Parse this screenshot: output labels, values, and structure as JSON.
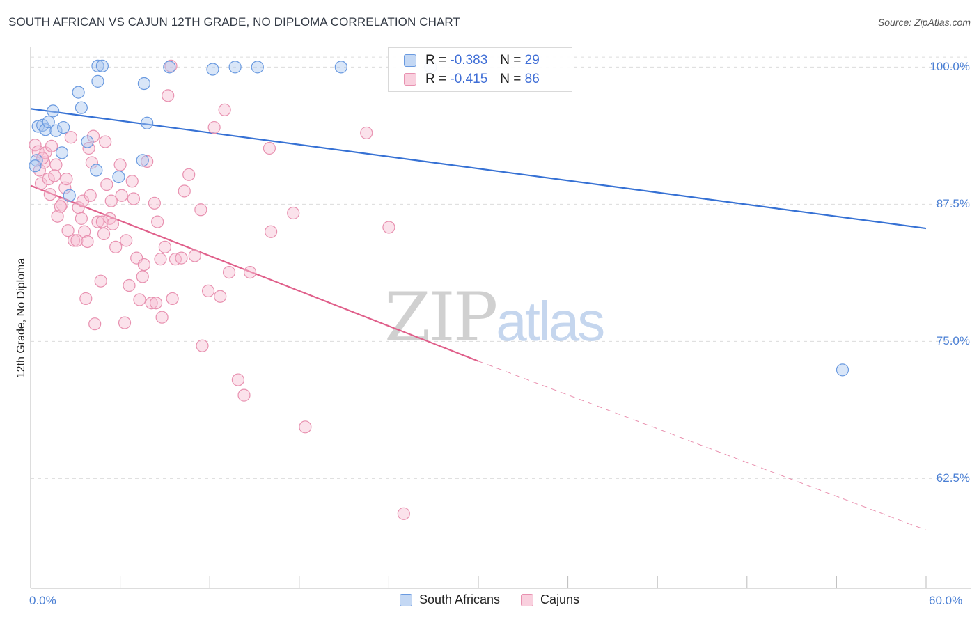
{
  "header": {
    "title": "SOUTH AFRICAN VS CAJUN 12TH GRADE, NO DIPLOMA CORRELATION CHART",
    "source": "Source: ZipAtlas.com"
  },
  "watermark": {
    "zip": "ZIP",
    "atlas": "atlas"
  },
  "legend": {
    "r_label": "R =",
    "n_label": "N =",
    "items": [
      {
        "r": "-0.383",
        "n": "29"
      },
      {
        "r": "-0.415",
        "n": "86"
      }
    ]
  },
  "colors": {
    "blue_fill": "#aac8f0",
    "blue_stroke": "#6a9ae0",
    "blue_line": "#3671d4",
    "pink_fill": "#f6bfd2",
    "pink_stroke": "#e891b0",
    "pink_line": "#e0608b",
    "axis_text": "#4a7fd4",
    "grid": "#dcdcdc"
  },
  "chart_data": {
    "type": "scatter",
    "title": "SOUTH AFRICAN VS CAJUN 12TH GRADE, NO DIPLOMA CORRELATION CHART",
    "xlabel": "",
    "ylabel": "12th Grade, No Diploma",
    "xlim": [
      0,
      60
    ],
    "ylim": [
      52.5,
      101.8
    ],
    "x_tick_labels": [
      "0.0%",
      "60.0%"
    ],
    "y_ticks": [
      100.0,
      87.5,
      75.0,
      62.5
    ],
    "y_tick_labels": [
      "100.0%",
      "87.5%",
      "75.0%",
      "62.5%"
    ],
    "grid": "horizontal dashed",
    "legend_position": "top-center",
    "series": [
      {
        "name": "South Africans",
        "stats": {
          "r": -0.383,
          "n": 29
        },
        "trend": {
          "x": [
            0,
            60
          ],
          "y": [
            96.2,
            85.3
          ],
          "style": "solid"
        },
        "points": [
          [
            0.4,
            91.5
          ],
          [
            0.5,
            94.6
          ],
          [
            0.8,
            94.7
          ],
          [
            1.0,
            94.3
          ],
          [
            1.2,
            95.0
          ],
          [
            1.5,
            96.0
          ],
          [
            1.7,
            94.2
          ],
          [
            2.2,
            94.5
          ],
          [
            2.1,
            92.2
          ],
          [
            2.6,
            88.3
          ],
          [
            3.2,
            97.7
          ],
          [
            3.4,
            96.3
          ],
          [
            3.8,
            93.2
          ],
          [
            4.4,
            90.6
          ],
          [
            4.5,
            98.7
          ],
          [
            4.5,
            100.1
          ],
          [
            4.8,
            100.1
          ],
          [
            5.9,
            90.0
          ],
          [
            7.5,
            91.5
          ],
          [
            7.6,
            98.5
          ],
          [
            7.8,
            94.9
          ],
          [
            9.3,
            100.0
          ],
          [
            12.2,
            99.8
          ],
          [
            13.7,
            100.0
          ],
          [
            15.2,
            100.0
          ],
          [
            20.8,
            100.0
          ],
          [
            26.8,
            100.0
          ],
          [
            54.4,
            72.4
          ],
          [
            0.3,
            91.0
          ]
        ]
      },
      {
        "name": "Cajuns",
        "stats": {
          "r": -0.415,
          "n": 86
        },
        "trend": {
          "x": [
            0,
            30
          ],
          "y": [
            89.2,
            73.2
          ],
          "x_dashed_end": 60,
          "y_dashed_end": 57.8,
          "style": "solid then dashed"
        },
        "points": [
          [
            0.3,
            92.9
          ],
          [
            0.5,
            92.3
          ],
          [
            0.6,
            90.6
          ],
          [
            0.7,
            89.4
          ],
          [
            0.9,
            91.3
          ],
          [
            1.0,
            92.2
          ],
          [
            1.2,
            89.8
          ],
          [
            1.3,
            88.4
          ],
          [
            1.4,
            92.8
          ],
          [
            1.7,
            91.1
          ],
          [
            1.8,
            86.4
          ],
          [
            2.1,
            87.5
          ],
          [
            2.3,
            89.0
          ],
          [
            2.4,
            89.8
          ],
          [
            2.5,
            85.1
          ],
          [
            2.7,
            93.6
          ],
          [
            2.9,
            84.2
          ],
          [
            3.1,
            84.2
          ],
          [
            3.2,
            87.2
          ],
          [
            3.4,
            86.2
          ],
          [
            3.5,
            87.8
          ],
          [
            3.6,
            85.0
          ],
          [
            3.7,
            78.9
          ],
          [
            3.8,
            84.1
          ],
          [
            4.0,
            88.3
          ],
          [
            4.1,
            91.3
          ],
          [
            4.3,
            76.6
          ],
          [
            4.5,
            85.9
          ],
          [
            4.7,
            80.5
          ],
          [
            4.8,
            85.9
          ],
          [
            4.9,
            84.8
          ],
          [
            5.1,
            89.3
          ],
          [
            5.3,
            86.2
          ],
          [
            5.4,
            87.8
          ],
          [
            5.5,
            85.7
          ],
          [
            5.7,
            83.6
          ],
          [
            6.0,
            91.1
          ],
          [
            6.3,
            76.7
          ],
          [
            6.4,
            84.2
          ],
          [
            6.6,
            80.1
          ],
          [
            6.8,
            89.6
          ],
          [
            6.9,
            88.0
          ],
          [
            7.1,
            82.6
          ],
          [
            7.3,
            78.8
          ],
          [
            7.5,
            80.9
          ],
          [
            7.6,
            82.0
          ],
          [
            7.8,
            91.4
          ],
          [
            8.1,
            78.5
          ],
          [
            8.3,
            87.6
          ],
          [
            8.5,
            85.9
          ],
          [
            8.7,
            82.5
          ],
          [
            8.8,
            77.2
          ],
          [
            9.0,
            83.6
          ],
          [
            9.2,
            97.4
          ],
          [
            9.4,
            100.1
          ],
          [
            9.5,
            78.9
          ],
          [
            9.7,
            82.5
          ],
          [
            10.1,
            82.6
          ],
          [
            10.3,
            88.7
          ],
          [
            10.6,
            90.2
          ],
          [
            11.0,
            82.8
          ],
          [
            11.4,
            87.0
          ],
          [
            11.5,
            74.6
          ],
          [
            11.9,
            79.6
          ],
          [
            12.3,
            94.5
          ],
          [
            12.7,
            79.1
          ],
          [
            13.0,
            96.1
          ],
          [
            13.3,
            81.3
          ],
          [
            13.9,
            71.5
          ],
          [
            14.3,
            70.1
          ],
          [
            14.7,
            81.3
          ],
          [
            16.0,
            92.6
          ],
          [
            16.1,
            85.0
          ],
          [
            17.6,
            86.7
          ],
          [
            18.4,
            67.2
          ],
          [
            22.5,
            94.0
          ],
          [
            24.0,
            85.4
          ],
          [
            25.0,
            59.3
          ],
          [
            3.9,
            92.6
          ],
          [
            2.0,
            87.3
          ],
          [
            1.6,
            90.1
          ],
          [
            0.8,
            91.7
          ],
          [
            5.0,
            93.2
          ],
          [
            4.2,
            93.7
          ],
          [
            6.1,
            88.3
          ],
          [
            8.4,
            78.5
          ]
        ]
      }
    ]
  }
}
